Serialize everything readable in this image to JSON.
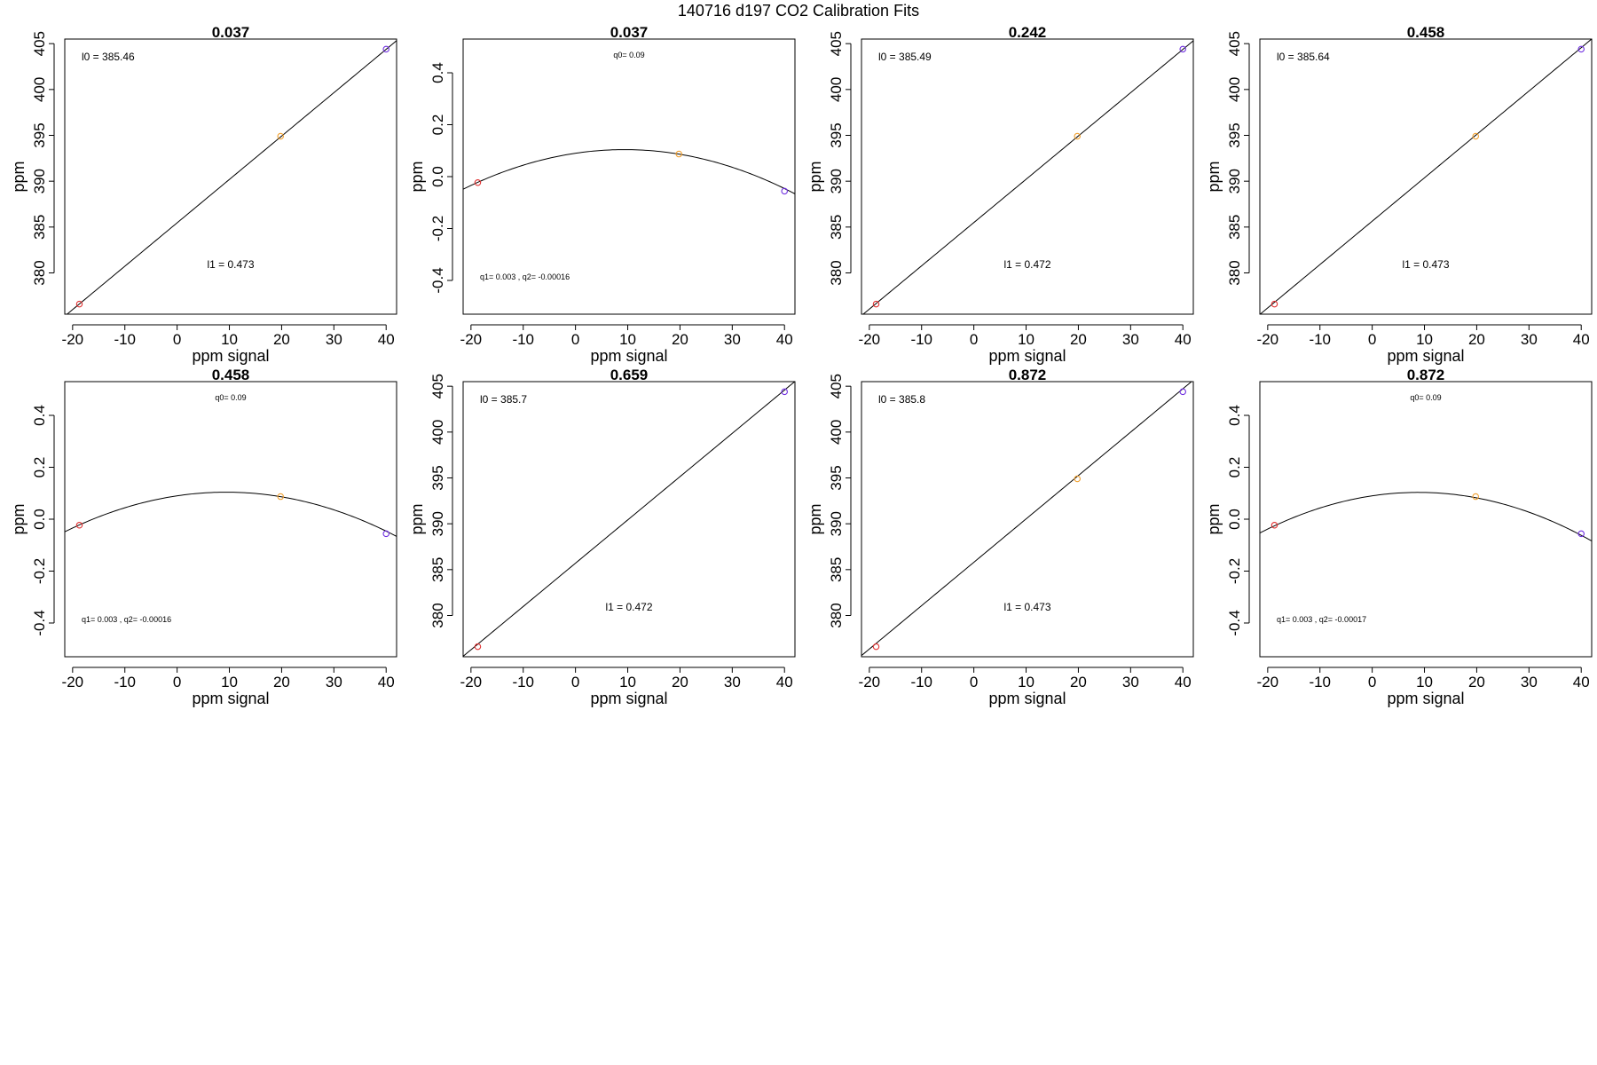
{
  "main_title": "140716   d197   CO2 Calibration Fits",
  "chart_data": [
    {
      "type": "scatter",
      "title": "0.037",
      "fit": "linear",
      "xlabel": "ppm signal",
      "ylabel": "ppm",
      "xlim": [
        -21.5,
        42
      ],
      "ylim": [
        375.5,
        405.5
      ],
      "xticks": [
        -20,
        -10,
        0,
        10,
        20,
        30,
        40
      ],
      "yticks": [
        380,
        385,
        390,
        395,
        400,
        405
      ],
      "coef": {
        "intercept": 385.46,
        "slope": 0.473
      },
      "points": [
        {
          "x": -18.7,
          "y": 376.6,
          "color": "#e03030"
        },
        {
          "x": 19.8,
          "y": 394.9,
          "color": "#f0a030"
        },
        {
          "x": 40.0,
          "y": 404.4,
          "color": "#7030e0"
        }
      ],
      "annotations": [
        "l0 =  385.46",
        "l1 =  0.473"
      ]
    },
    {
      "type": "scatter",
      "title": "0.037",
      "fit": "quadratic",
      "xlabel": "ppm signal",
      "ylabel": "ppm",
      "xlim": [
        -21.5,
        42
      ],
      "ylim": [
        -0.53,
        0.53
      ],
      "xticks": [
        -20,
        -10,
        0,
        10,
        20,
        30,
        40
      ],
      "yticks": [
        -0.4,
        -0.2,
        0.0,
        0.2,
        0.4
      ],
      "coef": {
        "q0": 0.09,
        "q1": 0.003,
        "q2": -0.00016
      },
      "points": [
        {
          "x": -18.7,
          "y": -0.023,
          "color": "#e03030"
        },
        {
          "x": 19.8,
          "y": 0.087,
          "color": "#f0a030"
        },
        {
          "x": 40.0,
          "y": -0.056,
          "color": "#7030e0"
        }
      ],
      "annotations": [
        "q0= 0.09",
        "q1= 0.003 , q2= -0.00016"
      ]
    },
    {
      "type": "scatter",
      "title": "0.242",
      "fit": "linear",
      "xlabel": "ppm signal",
      "ylabel": "ppm",
      "xlim": [
        -21.5,
        42
      ],
      "ylim": [
        375.5,
        405.5
      ],
      "xticks": [
        -20,
        -10,
        0,
        10,
        20,
        30,
        40
      ],
      "yticks": [
        380,
        385,
        390,
        395,
        400,
        405
      ],
      "coef": {
        "intercept": 385.49,
        "slope": 0.472
      },
      "points": [
        {
          "x": -18.7,
          "y": 376.6,
          "color": "#e03030"
        },
        {
          "x": 19.8,
          "y": 394.9,
          "color": "#f0a030"
        },
        {
          "x": 40.0,
          "y": 404.4,
          "color": "#7030e0"
        }
      ],
      "annotations": [
        "l0 =  385.49",
        "l1 =  0.472"
      ]
    },
    {
      "type": "scatter",
      "title": "0.458",
      "fit": "linear",
      "xlabel": "ppm signal",
      "ylabel": "ppm",
      "xlim": [
        -21.5,
        42
      ],
      "ylim": [
        375.5,
        405.5
      ],
      "xticks": [
        -20,
        -10,
        0,
        10,
        20,
        30,
        40
      ],
      "yticks": [
        380,
        385,
        390,
        395,
        400,
        405
      ],
      "coef": {
        "intercept": 385.64,
        "slope": 0.473
      },
      "points": [
        {
          "x": -18.7,
          "y": 376.6,
          "color": "#e03030"
        },
        {
          "x": 19.8,
          "y": 394.9,
          "color": "#f0a030"
        },
        {
          "x": 40.0,
          "y": 404.4,
          "color": "#7030e0"
        }
      ],
      "annotations": [
        "l0 =  385.64",
        "l1 =  0.473"
      ]
    },
    {
      "type": "scatter",
      "title": "0.458",
      "fit": "quadratic",
      "xlabel": "ppm signal",
      "ylabel": "ppm",
      "xlim": [
        -21.5,
        42
      ],
      "ylim": [
        -0.53,
        0.53
      ],
      "xticks": [
        -20,
        -10,
        0,
        10,
        20,
        30,
        40
      ],
      "yticks": [
        -0.4,
        -0.2,
        0.0,
        0.2,
        0.4
      ],
      "coef": {
        "q0": 0.09,
        "q1": 0.003,
        "q2": -0.00016
      },
      "points": [
        {
          "x": -18.7,
          "y": -0.023,
          "color": "#e03030"
        },
        {
          "x": 19.8,
          "y": 0.087,
          "color": "#f0a030"
        },
        {
          "x": 40.0,
          "y": -0.056,
          "color": "#7030e0"
        }
      ],
      "annotations": [
        "q0= 0.09",
        "q1= 0.003 , q2= -0.00016"
      ]
    },
    {
      "type": "scatter",
      "title": "0.659",
      "fit": "linear",
      "xlabel": "ppm signal",
      "ylabel": "ppm",
      "xlim": [
        -21.5,
        42
      ],
      "ylim": [
        375.5,
        405.5
      ],
      "xticks": [
        -20,
        -10,
        0,
        10,
        20,
        30,
        40
      ],
      "yticks": [
        380,
        385,
        390,
        395,
        400,
        405
      ],
      "coef": {
        "intercept": 385.7,
        "slope": 0.472
      },
      "points": [
        {
          "x": -18.7,
          "y": 376.6,
          "color": "#e03030"
        },
        {
          "x": 40.0,
          "y": 404.4,
          "color": "#7030e0"
        }
      ],
      "annotations": [
        "l0 =  385.7",
        "l1 =  0.472"
      ]
    },
    {
      "type": "scatter",
      "title": "0.872",
      "fit": "linear",
      "xlabel": "ppm signal",
      "ylabel": "ppm",
      "xlim": [
        -21.5,
        42
      ],
      "ylim": [
        375.5,
        405.5
      ],
      "xticks": [
        -20,
        -10,
        0,
        10,
        20,
        30,
        40
      ],
      "yticks": [
        380,
        385,
        390,
        395,
        400,
        405
      ],
      "coef": {
        "intercept": 385.8,
        "slope": 0.473
      },
      "points": [
        {
          "x": -18.7,
          "y": 376.6,
          "color": "#e03030"
        },
        {
          "x": 19.8,
          "y": 394.9,
          "color": "#f0a030"
        },
        {
          "x": 40.0,
          "y": 404.4,
          "color": "#7030e0"
        }
      ],
      "annotations": [
        "l0 =  385.8",
        "l1 =  0.473"
      ]
    },
    {
      "type": "scatter",
      "title": "0.872",
      "fit": "quadratic",
      "xlabel": "ppm signal",
      "ylabel": "ppm",
      "xlim": [
        -21.5,
        42
      ],
      "ylim": [
        -0.53,
        0.53
      ],
      "xticks": [
        -20,
        -10,
        0,
        10,
        20,
        30,
        40
      ],
      "yticks": [
        -0.4,
        -0.2,
        0.0,
        0.2,
        0.4
      ],
      "coef": {
        "q0": 0.09,
        "q1": 0.003,
        "q2": -0.00017
      },
      "points": [
        {
          "x": -18.7,
          "y": -0.023,
          "color": "#e03030"
        },
        {
          "x": 19.8,
          "y": 0.087,
          "color": "#f0a030"
        },
        {
          "x": 40.0,
          "y": -0.056,
          "color": "#7030e0"
        }
      ],
      "annotations": [
        "q0= 0.09",
        "q1= 0.003 , q2= -0.00017"
      ]
    }
  ]
}
